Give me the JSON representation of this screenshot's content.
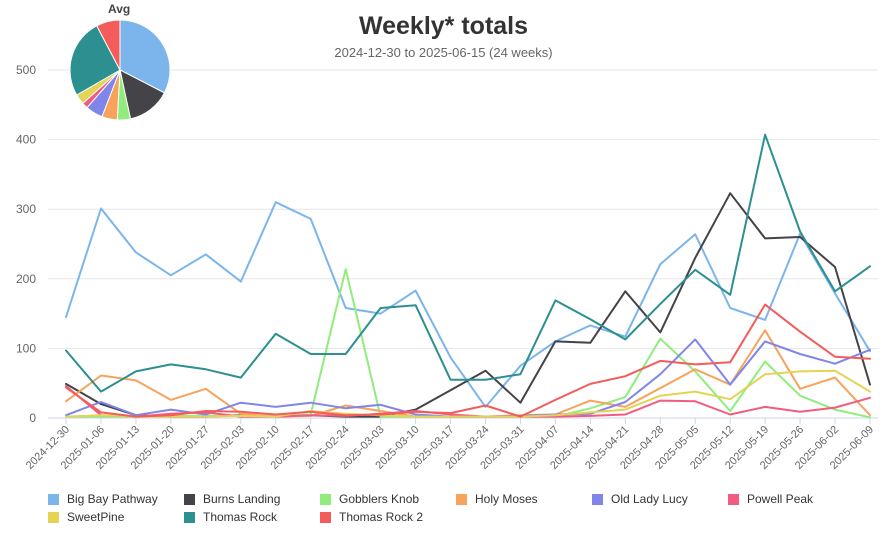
{
  "chart": {
    "title": "Weekly* totals",
    "subtitle": "2024-12-30 to 2025-06-15 (24 weeks)"
  },
  "chart_data": [
    {
      "type": "line",
      "title": "Weekly* totals",
      "subtitle": "2024-12-30 to 2025-06-15 (24 weeks)",
      "categories": [
        "2024-12-30",
        "2025-01-06",
        "2025-01-13",
        "2025-01-20",
        "2025-01-27",
        "2025-02-03",
        "2025-02-10",
        "2025-02-17",
        "2025-02-24",
        "2025-03-03",
        "2025-03-10",
        "2025-03-17",
        "2025-03-24",
        "2025-03-31",
        "2025-04-07",
        "2025-04-14",
        "2025-04-21",
        "2025-04-28",
        "2025-05-05",
        "2025-05-12",
        "2025-05-19",
        "2025-05-26",
        "2025-06-02",
        "2025-06-09"
      ],
      "ylim": [
        0,
        500
      ],
      "yticks": [
        0,
        100,
        200,
        300,
        400,
        500
      ],
      "grid": true,
      "legend_position": "bottom",
      "series": [
        {
          "name": "Big Bay Pathway",
          "color": "#7cb5ec",
          "values": [
            145,
            301,
            238,
            205,
            235,
            196,
            310,
            286,
            158,
            150,
            183,
            87,
            16,
            75,
            110,
            133,
            117,
            221,
            264,
            158,
            141,
            265,
            179,
            96
          ]
        },
        {
          "name": "Burns Landing",
          "color": "#434348",
          "values": [
            49,
            20,
            4,
            2,
            2,
            4,
            2,
            4,
            2,
            2,
            12,
            40,
            68,
            22,
            110,
            108,
            182,
            123,
            230,
            323,
            258,
            260,
            217,
            48
          ]
        },
        {
          "name": "Gobblers Knob",
          "color": "#90ed7d",
          "values": [
            2,
            2,
            2,
            3,
            3,
            3,
            3,
            5,
            214,
            2,
            2,
            2,
            2,
            2,
            2,
            14,
            30,
            114,
            67,
            10,
            81,
            32,
            12,
            1
          ]
        },
        {
          "name": "Holy Moses",
          "color": "#f7a35c",
          "values": [
            24,
            61,
            54,
            26,
            42,
            6,
            2,
            3,
            18,
            10,
            2,
            2,
            2,
            4,
            5,
            25,
            16,
            43,
            70,
            48,
            126,
            42,
            58,
            4
          ]
        },
        {
          "name": "Old Lady Lucy",
          "color": "#8085e9",
          "values": [
            4,
            23,
            4,
            12,
            5,
            22,
            16,
            22,
            14,
            19,
            5,
            2,
            2,
            3,
            5,
            6,
            23,
            63,
            113,
            48,
            110,
            92,
            78,
            98
          ]
        },
        {
          "name": "Powell Peak",
          "color": "#f15c80",
          "values": [
            46,
            4,
            2,
            6,
            8,
            2,
            2,
            4,
            3,
            6,
            10,
            5,
            2,
            2,
            2,
            3,
            5,
            25,
            24,
            5,
            16,
            9,
            15,
            29
          ]
        },
        {
          "name": "SweetPine",
          "color": "#e4d354",
          "values": [
            2,
            4,
            2,
            2,
            2,
            3,
            2,
            10,
            6,
            4,
            2,
            2,
            2,
            2,
            4,
            8,
            12,
            32,
            38,
            27,
            63,
            67,
            68,
            38
          ]
        },
        {
          "name": "Thomas Rock",
          "color": "#2b908f",
          "values": [
            97,
            38,
            67,
            77,
            70,
            58,
            121,
            92,
            92,
            158,
            162,
            55,
            55,
            63,
            169,
            142,
            113,
            164,
            213,
            177,
            407,
            268,
            182,
            218
          ]
        },
        {
          "name": "Thomas Rock 2",
          "color": "#f45b5b",
          "values": [
            44,
            8,
            2,
            4,
            10,
            9,
            5,
            9,
            4,
            5,
            9,
            7,
            18,
            2,
            26,
            49,
            60,
            82,
            77,
            80,
            163,
            124,
            88,
            85
          ]
        }
      ]
    },
    {
      "type": "pie",
      "title": "Avg",
      "categories": [
        "Big Bay Pathway",
        "Burns Landing",
        "Gobblers Knob",
        "Holy Moses",
        "Old Lady Lucy",
        "Powell Peak",
        "SweetPine",
        "Thomas Rock",
        "Thomas Rock 2"
      ],
      "values": [
        169,
        73,
        22,
        26,
        29,
        10,
        17,
        133,
        40
      ]
    }
  ]
}
